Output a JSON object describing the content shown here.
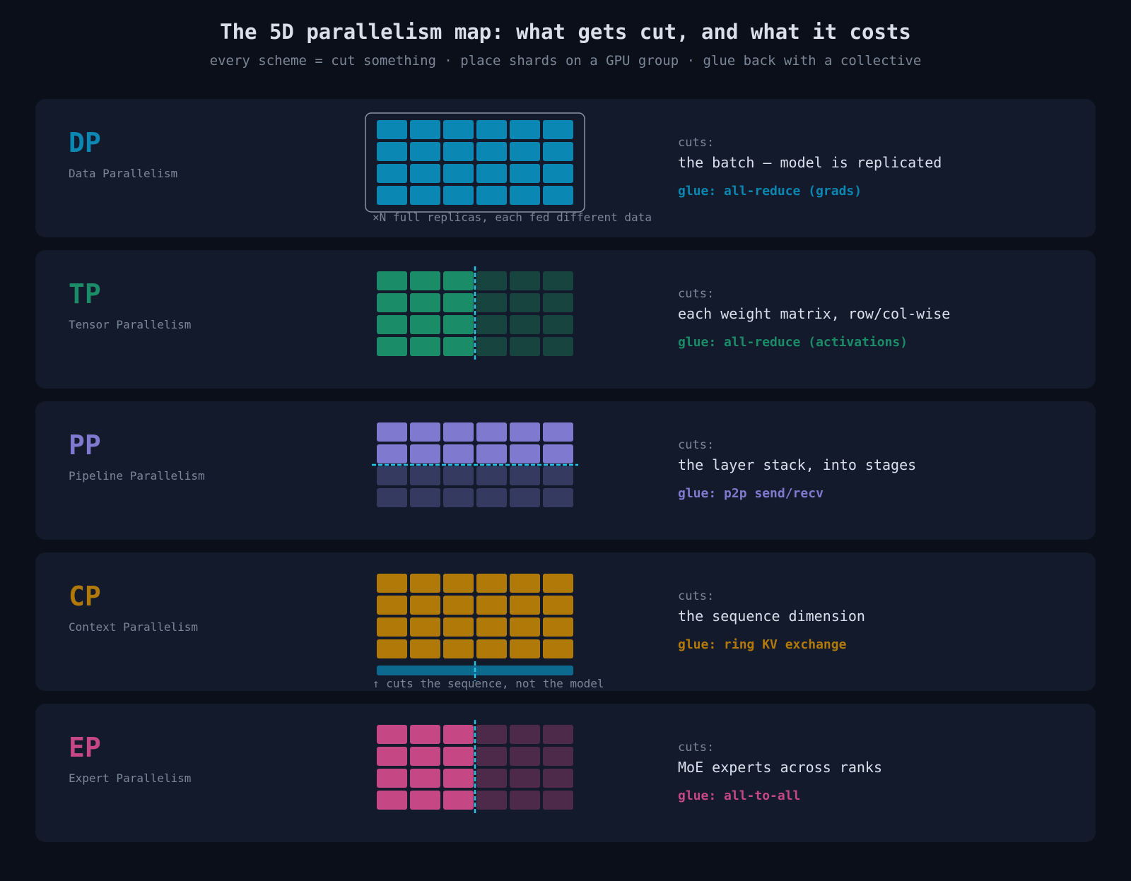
{
  "title": "The 5D parallelism map: what gets cut, and what it costs",
  "subtitle": "every scheme = cut something · place shards on a GPU group · glue back with a collective",
  "cut_line_color": "#22c5e6",
  "panels": [
    {
      "abbr": "DP",
      "name": "Data Parallelism",
      "cuts_label": "cuts:",
      "cuts": "the batch — model is replicated",
      "glue": "glue: all-reduce (grads)",
      "color": "#0a87b3",
      "dim_color": "#0a87b3",
      "grid": {
        "rows": 4,
        "cols": 6,
        "split": "none",
        "replica_frame": true,
        "sequence_bar": false
      },
      "note": "×N full replicas, each fed different data"
    },
    {
      "abbr": "TP",
      "name": "Tensor Parallelism",
      "cuts_label": "cuts:",
      "cuts": "each weight matrix, row/col-wise",
      "glue": "glue: all-reduce (activations)",
      "color": "#1b8c68",
      "dim_color": "#17443f",
      "grid": {
        "rows": 4,
        "cols": 6,
        "split": "vertical",
        "replica_frame": false,
        "sequence_bar": false
      },
      "note": ""
    },
    {
      "abbr": "PP",
      "name": "Pipeline Parallelism",
      "cuts_label": "cuts:",
      "cuts": "the layer stack, into stages",
      "glue": "glue: p2p send/recv",
      "color": "#8079d0",
      "dim_color": "#353a60",
      "grid": {
        "rows": 4,
        "cols": 6,
        "split": "horizontal",
        "replica_frame": false,
        "sequence_bar": false
      },
      "note": ""
    },
    {
      "abbr": "CP",
      "name": "Context Parallelism",
      "cuts_label": "cuts:",
      "cuts": "the sequence dimension",
      "glue": "glue: ring KV exchange",
      "color": "#b07908",
      "dim_color": "#b07908",
      "bar_color": "#0b6a8d",
      "grid": {
        "rows": 4,
        "cols": 6,
        "split": "none",
        "replica_frame": false,
        "sequence_bar": true
      },
      "note": "↑ cuts the sequence, not the model"
    },
    {
      "abbr": "EP",
      "name": "Expert Parallelism",
      "cuts_label": "cuts:",
      "cuts": "MoE experts across ranks",
      "glue": "glue: all-to-all",
      "color": "#c54884",
      "dim_color": "#4e2a4a",
      "grid": {
        "rows": 4,
        "cols": 6,
        "split": "vertical",
        "replica_frame": false,
        "sequence_bar": false
      },
      "note": ""
    }
  ]
}
